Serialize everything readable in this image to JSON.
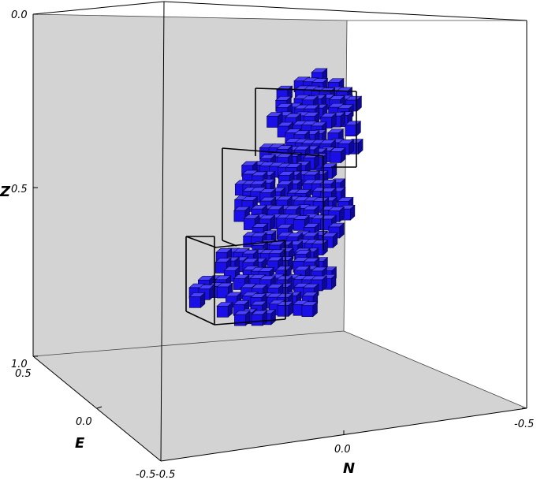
{
  "chart_data": {
    "type": "scatter3d",
    "title": "",
    "axes": {
      "z": {
        "label": "Z",
        "ticks": [
          "0.0",
          "0.5",
          "1.0"
        ],
        "range": [
          0.0,
          1.0
        ],
        "inverted": true
      },
      "e": {
        "label": "E",
        "ticks": [
          "0.5",
          "0.0",
          "-0.5"
        ],
        "range": [
          -0.5,
          0.5
        ]
      },
      "n": {
        "label": "N",
        "ticks": [
          "-0.5",
          "0.0",
          "-0.5"
        ],
        "range": [
          -0.5,
          0.5
        ]
      }
    },
    "colors": {
      "voxel": "#1a0fe6",
      "wall": "#d3d3d3",
      "floor": "#d3d3d3",
      "frame": "#000000"
    },
    "grid": false,
    "voxel_clusters": [
      {
        "e": [
          -0.05,
          0.05
        ],
        "n": [
          0.0,
          0.2
        ],
        "z": [
          0.25,
          0.45
        ]
      },
      {
        "e": [
          -0.1,
          0.1
        ],
        "n": [
          -0.05,
          0.2
        ],
        "z": [
          0.42,
          0.7
        ]
      },
      {
        "e": [
          -0.15,
          0.1
        ],
        "n": [
          -0.2,
          0.1
        ],
        "z": [
          0.65,
          0.85
        ]
      }
    ],
    "bounding_boxes": [
      {
        "e": [
          -0.05,
          0.05
        ],
        "n": [
          0.0,
          0.2
        ],
        "z": [
          0.25,
          0.45
        ]
      },
      {
        "e": [
          -0.1,
          0.1
        ],
        "n": [
          -0.05,
          0.2
        ],
        "z": [
          0.42,
          0.7
        ]
      },
      {
        "e": [
          -0.15,
          0.1
        ],
        "n": [
          -0.2,
          0.1
        ],
        "z": [
          0.65,
          0.85
        ]
      }
    ]
  }
}
